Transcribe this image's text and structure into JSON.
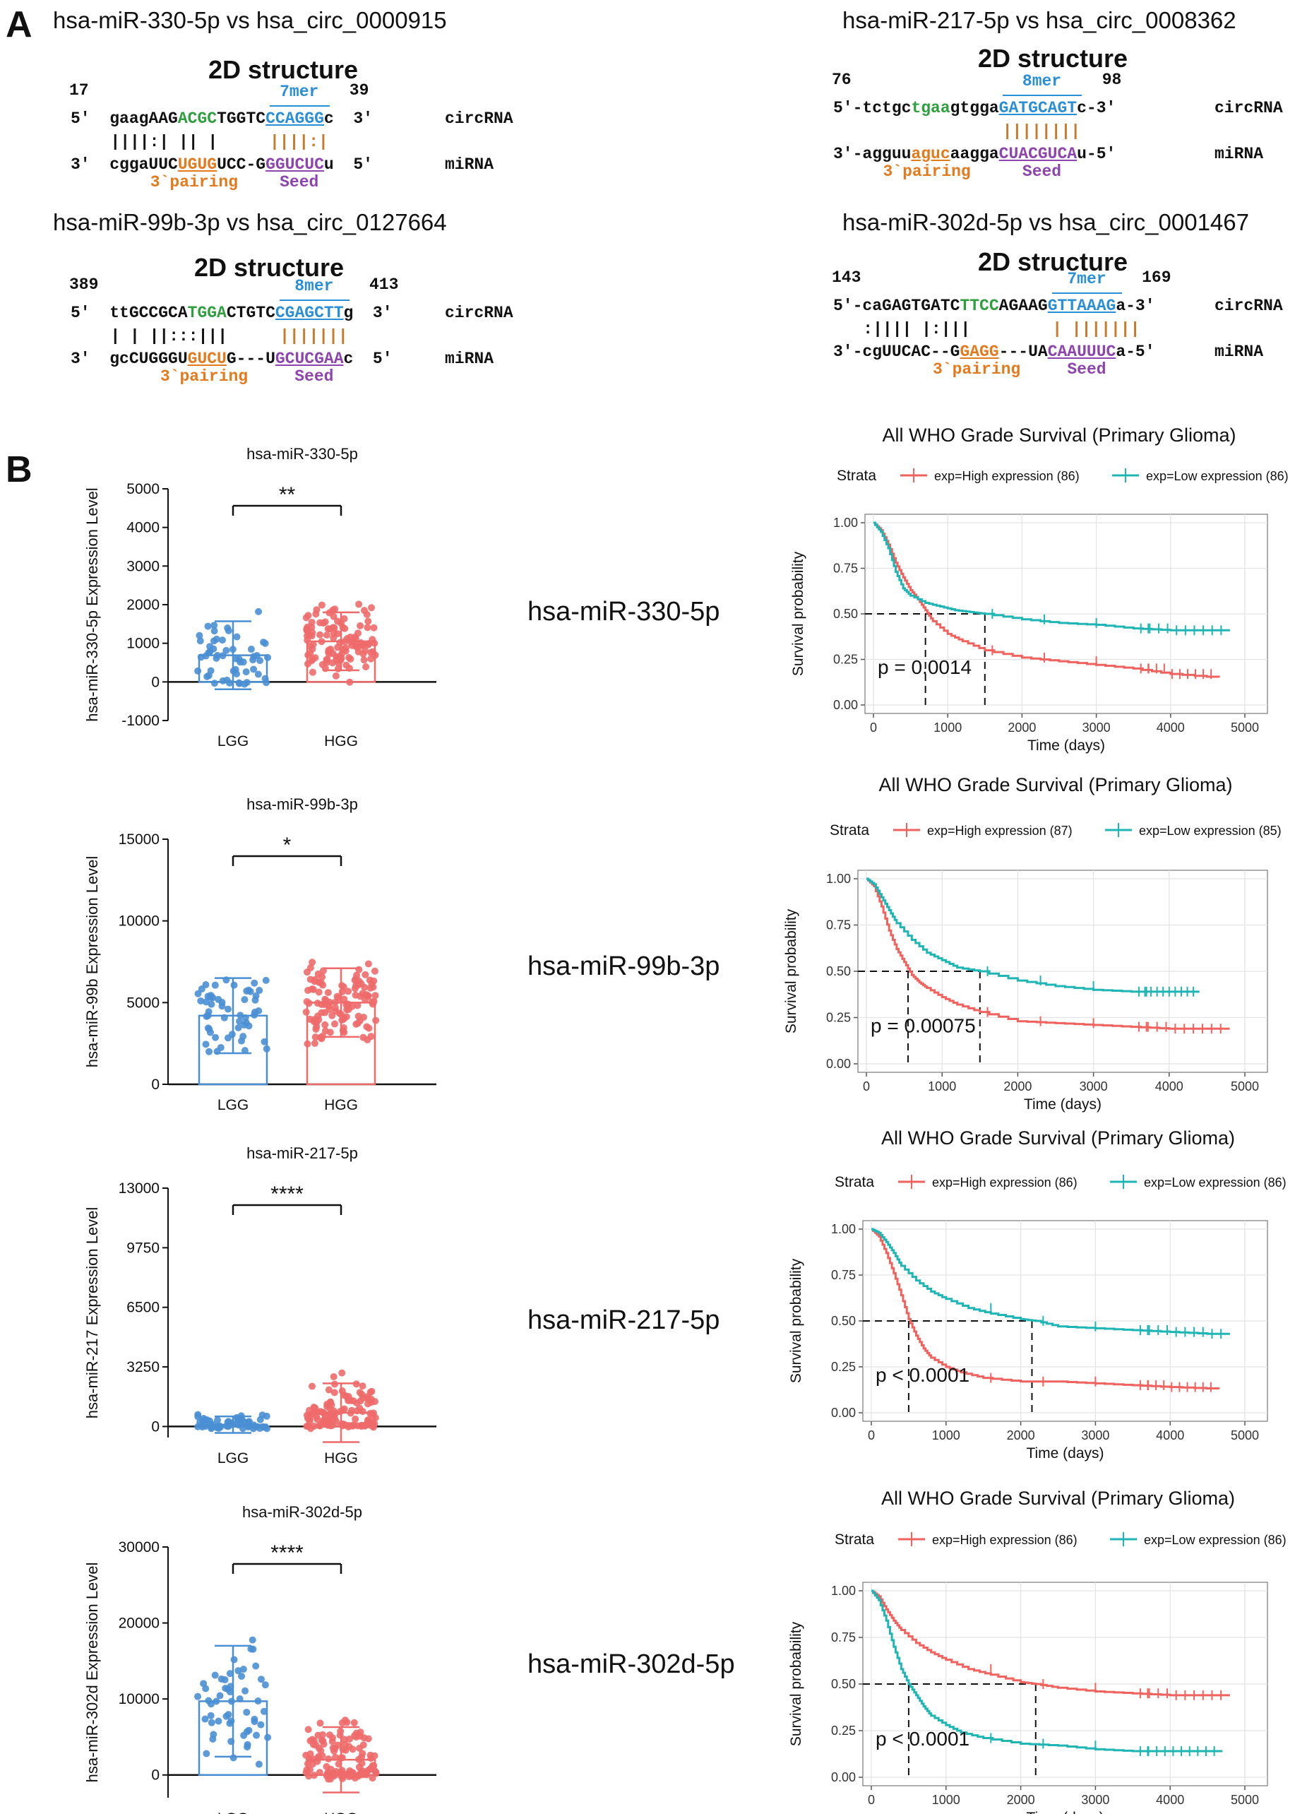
{
  "panel_a": {
    "letter": "A",
    "structure_title": "2D structure",
    "pairs": [
      {
        "title": "hsa-miR-330-5p vs hsa_circ_0000915",
        "start": "17",
        "end": "39",
        "site_type": "7mer",
        "circ": {
          "p5": "5'",
          "seg1": "gaagAAG",
          "seg2": "ACGC",
          "seg3": "TGGTC",
          "seg4": "CCAGGG",
          "seg5": "c",
          "p3": "3'",
          "label": "circRNA"
        },
        "bars1": "||||:| || |",
        "bars2": "||||:|",
        "mirna": {
          "p3": "3'",
          "seg1": "cggaUUC",
          "seg2": "UGUG",
          "seg3": "UCC-G",
          "seg4": "GGUCUC",
          "seg5": "u",
          "p5": "5'",
          "label": "miRNA"
        },
        "pairing": "3`pairing",
        "seed": "Seed"
      },
      {
        "title": "hsa-miR-217-5p vs hsa_circ_0008362",
        "start": "76",
        "end": "98",
        "site_type": "8mer",
        "circ": {
          "p5": "5'-",
          "seg1": "tctgc",
          "seg2": "tgaa",
          "seg3": "gtgga",
          "seg4": "GATGCAGT",
          "seg5": "c-3'",
          "label": "circRNA"
        },
        "bars1": "",
        "bars2": "||||||||",
        "mirna": {
          "p3": "3'-",
          "seg1": "agguu",
          "seg2": "aguc",
          "seg3": "aagga",
          "seg4": "CUACGUCA",
          "seg5": "u-5'",
          "label": "miRNA"
        },
        "pairing": "3`pairing",
        "seed": "Seed"
      },
      {
        "title": "hsa-miR-99b-3p vs hsa_circ_0127664",
        "start": "389",
        "end": "413",
        "site_type": "8mer",
        "circ": {
          "p5": "5'",
          "seg1": "ttGCCGCA",
          "seg2": "TGGA",
          "seg3": "CTGTC",
          "seg4": "CGAGCTT",
          "seg5": "g",
          "p3": "3'",
          "label": "circRNA"
        },
        "bars1": "| | ||:::|||",
        "bars2": "|||||||",
        "mirna": {
          "p3": "3'",
          "seg1": "gcCUGGGU",
          "seg2": "GUCU",
          "seg3": "G---U",
          "seg4": "GCUCGAA",
          "seg5": "c",
          "p5": "5'",
          "label": "miRNA"
        },
        "pairing": "3`pairing",
        "seed": "Seed"
      },
      {
        "title": "hsa-miR-302d-5p vs hsa_circ_0001467",
        "start": "143",
        "end": "169",
        "site_type": "7mer",
        "circ": {
          "p5": "5'-",
          "seg1": "caGAGTGATC",
          "seg2": "TTCC",
          "seg3": "AGAAG",
          "seg4": "GTTAAAG",
          "seg5": "a-3'",
          "label": "circRNA"
        },
        "bars1": ":|||| |:|||",
        "bars2": "| |||||||",
        "mirna": {
          "p3": "3'-",
          "seg1": "cgUUCAC--G",
          "seg2": "GAGG",
          "seg3": "---UA",
          "seg4": "CAAUUUC",
          "seg5": "a-5'",
          "label": "miRNA"
        },
        "pairing": "3`pairing",
        "seed": "Seed"
      }
    ]
  },
  "panel_b": {
    "letter": "B",
    "mirna_labels": [
      "hsa-miR-330-5p",
      "hsa-miR-99b-3p",
      "hsa-miR-217-5p",
      "hsa-miR-302d-5p"
    ]
  },
  "colors": {
    "lgg": "#4a8fd4",
    "hgg": "#ee6a6a",
    "high": "#f0625e",
    "low": "#1fb5b5"
  },
  "chart_data": [
    {
      "type": "bar",
      "title": "hsa-miR-330-5p",
      "ylabel": "hsa-miR-330-5p Expression Level",
      "categories": [
        "LGG",
        "HGG"
      ],
      "values": [
        690,
        1050
      ],
      "sd": [
        880,
        750
      ],
      "ylim": [
        -1000,
        5000
      ],
      "yticks": [
        -1000,
        0,
        1000,
        2000,
        3000,
        4000,
        5000
      ],
      "significance": "**"
    },
    {
      "type": "bar",
      "title": "hsa-miR-99b-3p",
      "ylabel": "hsa-miR-99b Expression Level",
      "categories": [
        "LGG",
        "HGG"
      ],
      "values": [
        4200,
        5000
      ],
      "sd": [
        2300,
        2100
      ],
      "ylim": [
        0,
        15000
      ],
      "yticks": [
        0,
        5000,
        10000,
        15000
      ],
      "significance": "*"
    },
    {
      "type": "bar",
      "title": "hsa-miR-217-5p",
      "ylabel": "hsa-miR-217 Expression Level",
      "categories": [
        "LGG",
        "HGG"
      ],
      "values": [
        100,
        750
      ],
      "sd": [
        450,
        1600
      ],
      "ylim": [
        -600,
        13000
      ],
      "yticks": [
        0,
        3250,
        6500,
        9750,
        13000
      ],
      "significance": "****"
    },
    {
      "type": "bar",
      "title": "hsa-miR-302d-5p",
      "ylabel": "hsa-miR-302d Expression Level",
      "categories": [
        "LGG",
        "HGG"
      ],
      "values": [
        9700,
        2000
      ],
      "sd": [
        7300,
        4300
      ],
      "ylim": [
        -3000,
        30000
      ],
      "yticks": [
        0,
        10000,
        20000,
        30000
      ],
      "significance": "****"
    },
    {
      "type": "line",
      "title": "All WHO Grade Survival (Primary Glioma)",
      "xlabel": "Time (days)",
      "ylabel": "Survival probability",
      "legend_title": "Strata",
      "series": [
        {
          "name": "exp=High expression (86)",
          "x": [
            0,
            100,
            200,
            300,
            400,
            500,
            600,
            700,
            800,
            1000,
            1200,
            1500,
            2000,
            2500,
            3000,
            3500,
            4000,
            4650
          ],
          "y": [
            1.0,
            0.96,
            0.88,
            0.78,
            0.7,
            0.63,
            0.58,
            0.52,
            0.46,
            0.39,
            0.35,
            0.3,
            0.26,
            0.24,
            0.22,
            0.2,
            0.17,
            0.15
          ]
        },
        {
          "name": "exp=Low expression (86)",
          "x": [
            0,
            100,
            200,
            300,
            400,
            500,
            700,
            900,
            1100,
            1300,
            1500,
            2000,
            2500,
            3000,
            3500,
            4000,
            4500,
            4800
          ],
          "y": [
            1.0,
            0.95,
            0.86,
            0.73,
            0.64,
            0.6,
            0.56,
            0.54,
            0.52,
            0.51,
            0.5,
            0.47,
            0.45,
            0.44,
            0.42,
            0.41,
            0.41,
            0.41
          ]
        }
      ],
      "xlim": [
        0,
        5000
      ],
      "ylim": [
        0,
        1
      ],
      "median": [
        700,
        1500
      ],
      "pvalue": "p = 0.0014"
    },
    {
      "type": "line",
      "title": "All WHO Grade Survival (Primary Glioma)",
      "xlabel": "Time (days)",
      "ylabel": "Survival probability",
      "legend_title": "Strata",
      "series": [
        {
          "name": "exp=High expression (87)",
          "x": [
            0,
            100,
            200,
            300,
            400,
            500,
            600,
            700,
            800,
            1000,
            1200,
            1500,
            2000,
            2500,
            3000,
            3500,
            4000,
            4800
          ],
          "y": [
            1.0,
            0.96,
            0.85,
            0.72,
            0.62,
            0.55,
            0.48,
            0.44,
            0.41,
            0.36,
            0.32,
            0.28,
            0.23,
            0.22,
            0.21,
            0.2,
            0.19,
            0.19
          ]
        },
        {
          "name": "exp=Low expression (85)",
          "x": [
            0,
            100,
            200,
            300,
            400,
            600,
            800,
            1000,
            1200,
            1500,
            2000,
            2500,
            3000,
            3500,
            4000,
            4400
          ],
          "y": [
            1.0,
            0.97,
            0.9,
            0.83,
            0.76,
            0.67,
            0.6,
            0.56,
            0.52,
            0.5,
            0.45,
            0.42,
            0.4,
            0.39,
            0.39,
            0.39
          ]
        }
      ],
      "xlim": [
        0,
        5000
      ],
      "ylim": [
        0,
        1
      ],
      "median": [
        550,
        1500
      ],
      "pvalue": "p = 0.00075"
    },
    {
      "type": "line",
      "title": "All WHO Grade Survival (Primary Glioma)",
      "xlabel": "Time (days)",
      "ylabel": "Survival probability",
      "legend_title": "Strata",
      "series": [
        {
          "name": "exp=High expression (86)",
          "x": [
            0,
            100,
            200,
            300,
            400,
            500,
            600,
            700,
            800,
            1000,
            1200,
            1500,
            2000,
            2500,
            3000,
            3500,
            4000,
            4650
          ],
          "y": [
            1.0,
            0.96,
            0.87,
            0.76,
            0.64,
            0.51,
            0.42,
            0.35,
            0.3,
            0.25,
            0.22,
            0.19,
            0.17,
            0.17,
            0.16,
            0.15,
            0.14,
            0.13
          ]
        },
        {
          "name": "exp=Low expression (86)",
          "x": [
            0,
            100,
            200,
            300,
            400,
            600,
            800,
            1000,
            1300,
            1600,
            2000,
            2200,
            2500,
            3000,
            3500,
            4000,
            4500,
            4800
          ],
          "y": [
            1.0,
            0.98,
            0.93,
            0.87,
            0.8,
            0.72,
            0.66,
            0.62,
            0.57,
            0.54,
            0.51,
            0.5,
            0.47,
            0.46,
            0.45,
            0.44,
            0.43,
            0.43
          ]
        }
      ],
      "xlim": [
        0,
        5000
      ],
      "ylim": [
        0,
        1
      ],
      "median": [
        500,
        2150
      ],
      "pvalue": "p < 0.0001"
    },
    {
      "type": "line",
      "title": "All WHO Grade Survival (Primary Glioma)",
      "xlabel": "Time (days)",
      "ylabel": "Survival probability",
      "legend_title": "Strata",
      "series": [
        {
          "name": "exp=High expression (86)",
          "x": [
            0,
            100,
            200,
            300,
            400,
            600,
            800,
            1000,
            1300,
            1600,
            2000,
            2200,
            2500,
            3000,
            3500,
            4000,
            4500,
            4800
          ],
          "y": [
            1.0,
            0.97,
            0.9,
            0.84,
            0.79,
            0.72,
            0.67,
            0.63,
            0.58,
            0.55,
            0.51,
            0.5,
            0.48,
            0.46,
            0.45,
            0.44,
            0.44,
            0.44
          ]
        },
        {
          "name": "exp=Low expression (86)",
          "x": [
            0,
            100,
            200,
            300,
            400,
            500,
            600,
            700,
            800,
            1000,
            1200,
            1500,
            2000,
            2500,
            3000,
            3500,
            4000,
            4700
          ],
          "y": [
            1.0,
            0.95,
            0.84,
            0.7,
            0.58,
            0.5,
            0.44,
            0.38,
            0.33,
            0.28,
            0.24,
            0.21,
            0.18,
            0.17,
            0.15,
            0.14,
            0.14,
            0.14
          ]
        }
      ],
      "xlim": [
        0,
        5000
      ],
      "ylim": [
        0,
        1
      ],
      "median": [
        500,
        2200
      ],
      "pvalue": "p < 0.0001"
    }
  ]
}
